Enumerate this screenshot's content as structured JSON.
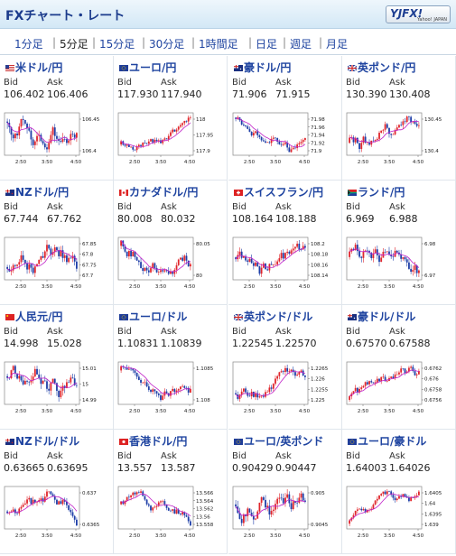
{
  "header": {
    "title": "FXチャート・レート",
    "logo_main": "YJFX!",
    "logo_sub": "Yahoo! JAPAN"
  },
  "tabs": [
    {
      "label": "1分足"
    },
    {
      "label": "5分足",
      "active": true
    },
    {
      "label": "15分足"
    },
    {
      "label": "30分足"
    },
    {
      "label": "1時間足"
    },
    {
      "label": "日足"
    },
    {
      "label": "週足"
    },
    {
      "label": "月足"
    }
  ],
  "bid_label": "Bid",
  "ask_label": "Ask",
  "panels": [
    {
      "name": "米ドル/円",
      "bid": "106.402",
      "ask": "106.406",
      "flag": "us",
      "ticks": [
        "106.45",
        "106.4"
      ],
      "x": [
        "2:50",
        "3:50",
        "4:50"
      ]
    },
    {
      "name": "ユーロ/円",
      "bid": "117.930",
      "ask": "117.940",
      "flag": "eu",
      "ticks": [
        "118",
        "117.95",
        "117.9"
      ],
      "x": [
        "2:50",
        "3:50",
        "4:50"
      ]
    },
    {
      "name": "豪ドル/円",
      "bid": "71.906",
      "ask": "71.915",
      "flag": "au",
      "ticks": [
        "71.98",
        "71.96",
        "71.94",
        "71.92",
        "71.9"
      ],
      "x": [
        "2:50",
        "3:50",
        "4:50"
      ]
    },
    {
      "name": "英ポンド/円",
      "bid": "130.390",
      "ask": "130.408",
      "flag": "gb",
      "ticks": [
        "130.45",
        "130.4"
      ],
      "x": [
        "2:50",
        "3:50",
        "4:50"
      ]
    },
    {
      "name": "NZドル/円",
      "bid": "67.744",
      "ask": "67.762",
      "flag": "nz",
      "ticks": [
        "67.85",
        "67.8",
        "67.75",
        "67.7"
      ],
      "x": [
        "2:50",
        "3:50",
        "4:50"
      ]
    },
    {
      "name": "カナダドル/円",
      "bid": "80.008",
      "ask": "80.032",
      "flag": "ca",
      "ticks": [
        "80.05",
        "80"
      ],
      "x": [
        "2:50",
        "3:50",
        "4:50"
      ]
    },
    {
      "name": "スイスフラン/円",
      "bid": "108.164",
      "ask": "108.188",
      "flag": "ch",
      "ticks": [
        "108.2",
        "108.18",
        "108.16",
        "108.14"
      ],
      "x": [
        "2:50",
        "3:50",
        "4:50"
      ]
    },
    {
      "name": "ランド/円",
      "bid": "6.969",
      "ask": "6.988",
      "flag": "za",
      "ticks": [
        "6.98",
        "6.97"
      ],
      "x": [
        "2:50",
        "3:50",
        "4:50"
      ]
    },
    {
      "name": "人民元/円",
      "bid": "14.998",
      "ask": "15.028",
      "flag": "cn",
      "ticks": [
        "15.01",
        "15",
        "14.99"
      ],
      "x": [
        "2:50",
        "3:50",
        "4:50"
      ]
    },
    {
      "name": "ユーロ/ドル",
      "bid": "1.10831",
      "ask": "1.10839",
      "flag": "eu",
      "ticks": [
        "1.1085",
        "1.108"
      ],
      "x": [
        "2:50",
        "3:50",
        "4:50"
      ]
    },
    {
      "name": "英ポンド/ドル",
      "bid": "1.22545",
      "ask": "1.22570",
      "flag": "gb",
      "ticks": [
        "1.2265",
        "1.226",
        "1.2255",
        "1.225"
      ],
      "x": [
        "2:50",
        "3:50",
        "4:50"
      ]
    },
    {
      "name": "豪ドル/ドル",
      "bid": "0.67570",
      "ask": "0.67588",
      "flag": "au",
      "ticks": [
        "0.6762",
        "0.676",
        "0.6758",
        "0.6756"
      ],
      "x": [
        "2:50",
        "3:50",
        "4:50"
      ]
    },
    {
      "name": "NZドル/ドル",
      "bid": "0.63665",
      "ask": "0.63695",
      "flag": "nz",
      "ticks": [
        "0.637",
        "0.6365"
      ],
      "x": [
        "2:50",
        "3:50",
        "4:50"
      ]
    },
    {
      "name": "香港ドル/円",
      "bid": "13.557",
      "ask": "13.587",
      "flag": "hk",
      "ticks": [
        "13.566",
        "13.564",
        "13.562",
        "13.56",
        "13.558"
      ],
      "x": [
        "2:50",
        "3:50",
        "4:50"
      ]
    },
    {
      "name": "ユーロ/英ポンド",
      "bid": "0.90429",
      "ask": "0.90447",
      "flag": "eu",
      "ticks": [
        "0.905",
        "0.9045"
      ],
      "x": [
        "2:50",
        "3:50",
        "4:50"
      ]
    },
    {
      "name": "ユーロ/豪ドル",
      "bid": "1.64003",
      "ask": "1.64026",
      "flag": "eu",
      "ticks": [
        "1.6405",
        "1.64",
        "1.6395",
        "1.639"
      ],
      "x": [
        "2:50",
        "3:50",
        "4:50"
      ]
    }
  ],
  "colors": {
    "up": "#e0262c",
    "down": "#1f3fa8",
    "ma": "#c020c8",
    "link": "#1f44a0"
  }
}
